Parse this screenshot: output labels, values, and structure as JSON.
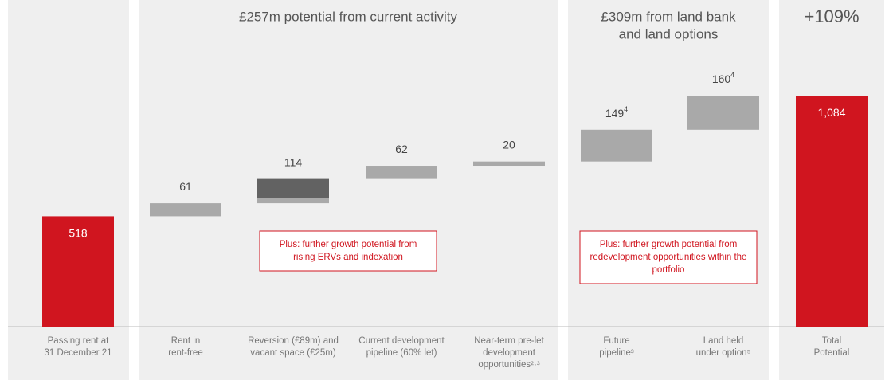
{
  "chart_data": {
    "type": "waterfall",
    "panels": [
      {
        "title": [
          "£257m potential from current activity"
        ],
        "categories": [
          1,
          2,
          3,
          4
        ]
      },
      {
        "title": [
          "£309m from land bank",
          "and land options"
        ],
        "categories": [
          5,
          6
        ]
      },
      {
        "title": [
          "+109%"
        ],
        "categories": [
          7
        ]
      }
    ],
    "categories": [
      [
        "Passing rent at",
        "31 December 21"
      ],
      [
        "Rent in",
        "rent-free"
      ],
      [
        "Reversion (£89m) and",
        "vacant space (£25m)"
      ],
      [
        "Current development",
        "pipeline (60% let)"
      ],
      [
        "Near-term pre-let",
        "development",
        "opportunities²·³"
      ],
      [
        "Future",
        "pipeline³"
      ],
      [
        "Land held",
        "under option⁵"
      ],
      [
        "Total",
        "Potential"
      ]
    ],
    "measure": [
      "absolute",
      "relative",
      "relative",
      "relative",
      "relative",
      "relative",
      "relative",
      "total"
    ],
    "values": [
      518,
      61,
      114,
      62,
      20,
      149,
      160,
      1084
    ],
    "value_labels": [
      "518",
      "61",
      "114",
      "62",
      "20",
      "149",
      "160",
      "1,084"
    ],
    "footnotes": [
      null,
      null,
      null,
      null,
      null,
      "4",
      "4",
      null
    ],
    "colors": {
      "absolute": "#d0151f",
      "relative": "#a9a9a9",
      "total": "#d0151f"
    },
    "split": {
      "category": 2,
      "values": [
        89,
        25
      ],
      "colors": [
        "#626262",
        "#a9a9a9"
      ]
    },
    "annotations": [
      {
        "category": 2,
        "lines": [
          "Plus: further growth potential from",
          "rising ERVs and indexation"
        ]
      },
      {
        "category": 5,
        "lines": [
          "Plus: further growth potential from",
          "redevelopment opportunities within the",
          "portfolio"
        ]
      }
    ]
  }
}
